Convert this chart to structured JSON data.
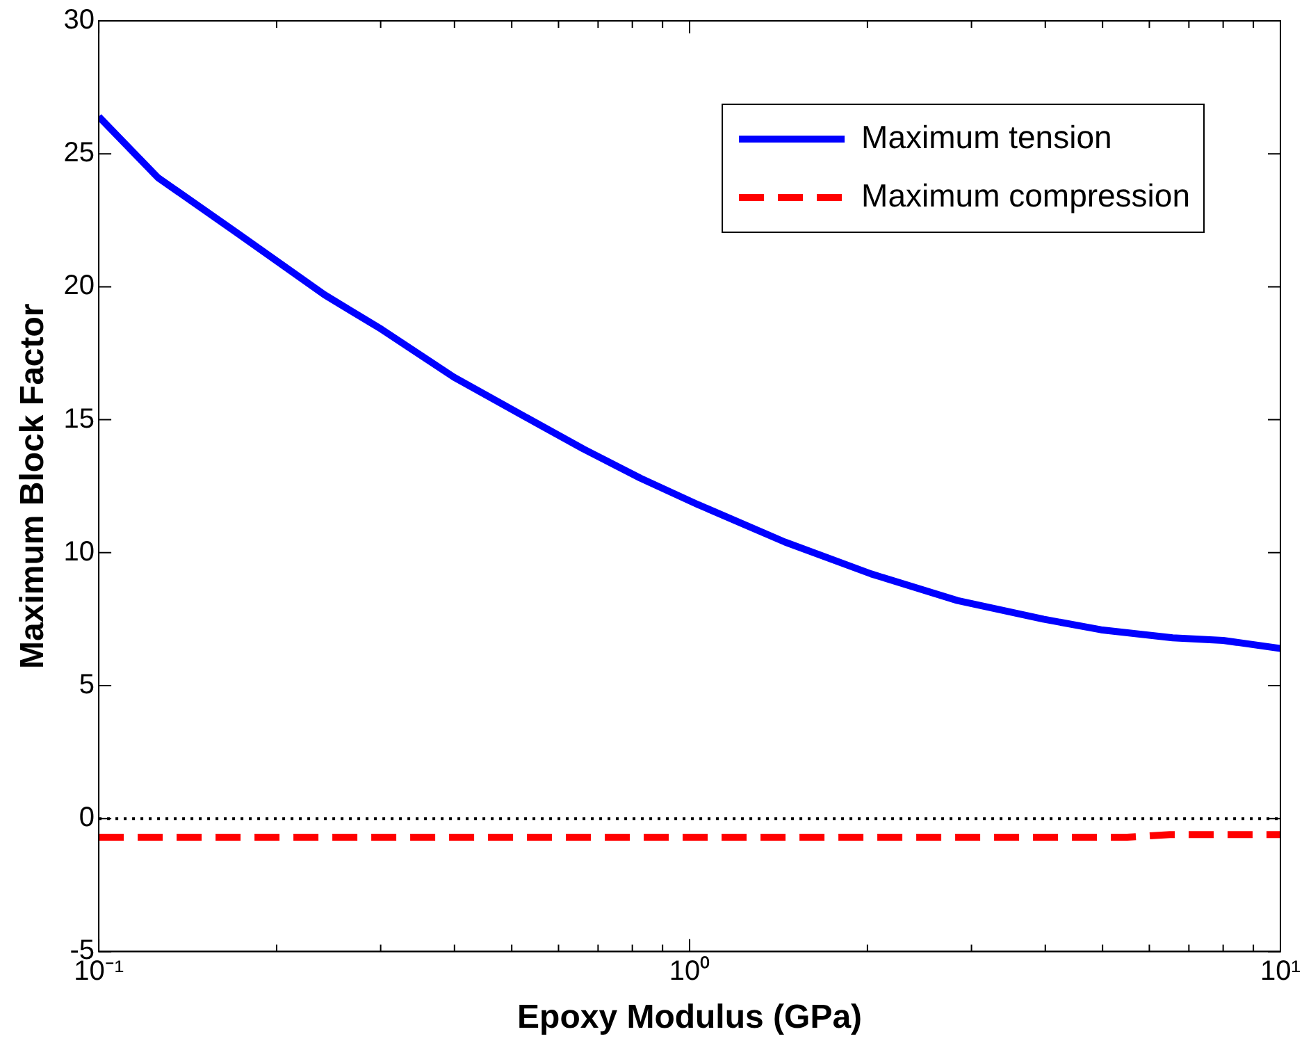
{
  "chart_data": {
    "type": "line",
    "xlabel": "Epoxy Modulus (GPa)",
    "ylabel": "Maximum Block Factor",
    "log": "x",
    "legend": "top right",
    "marker": "none",
    "grid": false,
    "xlim": [
      0.1,
      10
    ],
    "ylim": [
      -5,
      30
    ],
    "xticks": [
      {
        "value": 0.1,
        "label": "10⁻¹"
      },
      {
        "value": 0.2,
        "label": null
      },
      {
        "value": 0.3,
        "label": null
      },
      {
        "value": 0.4,
        "label": null
      },
      {
        "value": 0.5,
        "label": null
      },
      {
        "value": 0.6,
        "label": null
      },
      {
        "value": 0.7,
        "label": null
      },
      {
        "value": 0.8,
        "label": null
      },
      {
        "value": 0.9,
        "label": null
      },
      {
        "value": 1,
        "label": "10⁰"
      },
      {
        "value": 2,
        "label": null
      },
      {
        "value": 3,
        "label": null
      },
      {
        "value": 4,
        "label": null
      },
      {
        "value": 5,
        "label": null
      },
      {
        "value": 6,
        "label": null
      },
      {
        "value": 7,
        "label": null
      },
      {
        "value": 8,
        "label": null
      },
      {
        "value": 9,
        "label": null
      },
      {
        "value": 10,
        "label": "10¹"
      }
    ],
    "yticks": [
      -5,
      0,
      5,
      10,
      15,
      20,
      25,
      30
    ],
    "ref_lines": [
      {
        "axis": "y",
        "value": 0,
        "color": "#000000",
        "line_style": "dotted"
      }
    ],
    "series": [
      {
        "name": "Maximum tension",
        "color": "#0000ff",
        "line_style": "solid",
        "x": [
          0.1,
          0.126,
          0.172,
          0.241,
          0.301,
          0.399,
          0.528,
          0.661,
          0.826,
          1.035,
          1.45,
          2.03,
          2.84,
          3.97,
          4.97,
          6.57,
          8.0,
          10
        ],
        "values": [
          26.4,
          24.1,
          22.0,
          19.7,
          18.4,
          16.6,
          15.1,
          13.9,
          12.8,
          11.8,
          10.4,
          9.2,
          8.2,
          7.5,
          7.1,
          6.8,
          6.7,
          6.4
        ]
      },
      {
        "name": "Maximum compression",
        "color": "#ff0000",
        "line_style": "dashed",
        "x": [
          0.1,
          1,
          5.5,
          6.5,
          10
        ],
        "values": [
          -0.7,
          -0.7,
          -0.7,
          -0.6,
          -0.6
        ]
      }
    ]
  }
}
